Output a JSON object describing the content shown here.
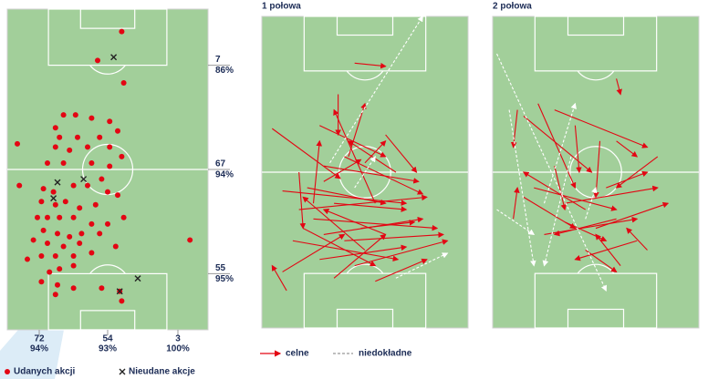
{
  "chart_data": [
    {
      "type": "scatter",
      "xlim": [
        0,
        100
      ],
      "ylim": [
        100,
        0
      ],
      "series": [
        {
          "name": "Udanych akcji",
          "color": "#e30613",
          "marker": "dot",
          "x": [
            57,
            45,
            58,
            28,
            34,
            24,
            42,
            51,
            5,
            26,
            35,
            46,
            55,
            24,
            31,
            40,
            51,
            57,
            20,
            28,
            42,
            51,
            47,
            6,
            18,
            23,
            33,
            40,
            50,
            55,
            17,
            24,
            29,
            36,
            44,
            15,
            20,
            26,
            33,
            42,
            50,
            58,
            18,
            25,
            31,
            37,
            46,
            13,
            20,
            28,
            36,
            54,
            91,
            17,
            24,
            33,
            42,
            26,
            33,
            10,
            21,
            25,
            17,
            33,
            56,
            47,
            57,
            24
          ],
          "y": [
            7,
            16,
            23,
            33,
            33,
            37,
            34,
            35,
            42,
            40,
            40,
            40,
            38,
            43,
            44,
            43,
            43,
            46,
            48,
            48,
            48,
            49,
            53,
            55,
            56,
            57,
            55,
            55,
            57,
            58,
            60,
            61,
            60,
            62,
            61,
            65,
            65,
            65,
            65,
            67,
            67,
            65,
            69,
            70,
            71,
            70,
            70,
            72,
            73,
            74,
            73,
            74,
            72,
            77,
            77,
            77,
            76,
            81,
            80,
            78,
            82,
            86,
            85,
            87,
            88,
            87,
            91,
            89
          ]
        },
        {
          "name": "Nieudane akcje",
          "color": "#222222",
          "marker": "cross",
          "x": [
            53,
            25,
            38,
            23,
            65,
            56
          ],
          "y": [
            15,
            54,
            53,
            59,
            84,
            88
          ]
        }
      ],
      "row_stats": [
        {
          "count": 7,
          "share": "86%"
        },
        {
          "count": 67,
          "share": "94%"
        },
        {
          "count": 55,
          "share": "95%"
        }
      ],
      "column_stats": [
        {
          "count": 72,
          "share": "94%"
        },
        {
          "count": 54,
          "share": "93%"
        },
        {
          "count": 3,
          "share": "100%"
        }
      ]
    },
    {
      "type": "arrows",
      "title": "1 połowa",
      "xlim": [
        0,
        100
      ],
      "ylim": [
        100,
        0
      ],
      "series": [
        {
          "name": "celne",
          "color": "#e30613",
          "style": "solid",
          "arrows": [
            [
              45,
              15,
              60,
              16
            ],
            [
              37,
              25,
              37,
              38
            ],
            [
              28,
              35,
              60,
              45
            ],
            [
              5,
              36,
              38,
              52
            ],
            [
              30,
              48,
              76,
              53
            ],
            [
              22,
              55,
              60,
              60
            ],
            [
              40,
              45,
              78,
              57
            ],
            [
              50,
              47,
              60,
              40
            ],
            [
              10,
              56,
              70,
              60
            ],
            [
              18,
              62,
              80,
              58
            ],
            [
              25,
              65,
              85,
              68
            ],
            [
              35,
              60,
              70,
              62
            ],
            [
              30,
              70,
              78,
              65
            ],
            [
              15,
              72,
              66,
              78
            ],
            [
              40,
              72,
              88,
              70
            ],
            [
              28,
              78,
              70,
              74
            ],
            [
              50,
              75,
              20,
              58
            ],
            [
              60,
              70,
              30,
              62
            ],
            [
              45,
              80,
              90,
              72
            ],
            [
              20,
              68,
              55,
              80
            ],
            [
              35,
              84,
              60,
              70
            ],
            [
              10,
              82,
              40,
              70
            ],
            [
              25,
              60,
              28,
              40
            ],
            [
              18,
              50,
              20,
              68
            ],
            [
              55,
              60,
              35,
              30
            ],
            [
              42,
              45,
              50,
              28
            ],
            [
              65,
              50,
              42,
              40
            ],
            [
              60,
              38,
              75,
              50
            ],
            [
              12,
              88,
              5,
              80
            ],
            [
              55,
              85,
              80,
              78
            ],
            [
              30,
              53,
              48,
              46
            ],
            [
              48,
              68,
              74,
              66
            ]
          ]
        },
        {
          "name": "niedokładne",
          "color": "#ffffff",
          "style": "dashed",
          "arrows": [
            [
              33,
              47,
              78,
              0
            ],
            [
              65,
              84,
              90,
              76
            ],
            [
              45,
              55,
              55,
              45
            ]
          ]
        }
      ]
    },
    {
      "type": "arrows",
      "title": "2 połowa",
      "xlim": [
        0,
        100
      ],
      "ylim": [
        100,
        0
      ],
      "series": [
        {
          "color": "#e30613",
          "style": "solid",
          "arrows": [
            [
              60,
              20,
              62,
              25
            ],
            [
              12,
              30,
              10,
              42
            ],
            [
              15,
              32,
              48,
              50
            ],
            [
              22,
              28,
              40,
              55
            ],
            [
              30,
              30,
              75,
              42
            ],
            [
              40,
              35,
              42,
              50
            ],
            [
              52,
              40,
              50,
              58
            ],
            [
              60,
              40,
              70,
              45
            ],
            [
              80,
              45,
              60,
              55
            ],
            [
              20,
              55,
              60,
              62
            ],
            [
              15,
              58,
              40,
              68
            ],
            [
              35,
              60,
              80,
              55
            ],
            [
              45,
              62,
              15,
              50
            ],
            [
              60,
              65,
              30,
              70
            ],
            [
              25,
              70,
              70,
              65
            ],
            [
              50,
              68,
              85,
              60
            ],
            [
              70,
              72,
              40,
              78
            ],
            [
              10,
              65,
              12,
              55
            ],
            [
              30,
              48,
              35,
              62
            ],
            [
              55,
              55,
              75,
              50
            ],
            [
              62,
              80,
              50,
              70
            ],
            [
              45,
              75,
              60,
              82
            ],
            [
              75,
              75,
              65,
              68
            ],
            [
              35,
              66,
              55,
              72
            ]
          ]
        },
        {
          "color": "#ffffff",
          "style": "dashed",
          "arrows": [
            [
              2,
              12,
              55,
              88
            ],
            [
              8,
              30,
              20,
              80
            ],
            [
              2,
              62,
              20,
              70
            ],
            [
              25,
              60,
              40,
              28
            ],
            [
              38,
              45,
              25,
              80
            ],
            [
              45,
              65,
              50,
              55
            ]
          ]
        }
      ]
    }
  ]
}
